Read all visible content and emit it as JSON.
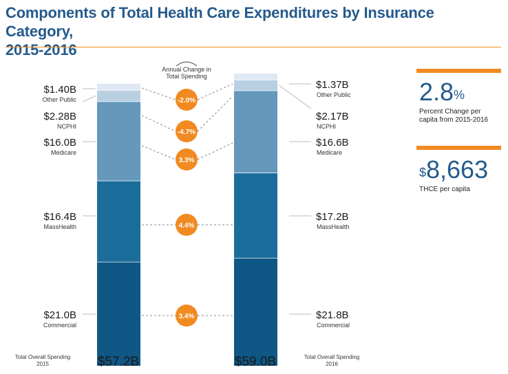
{
  "header": {
    "title_line1": "Components of Total Health Care Expenditures by Insurance Category,",
    "title_line2": "2015-2016"
  },
  "stats": [
    {
      "value": "2.8",
      "suffix": "%",
      "prefix": "",
      "label_line1": "Percent Change per",
      "label_line2": "capita from 2015-2016"
    },
    {
      "value": "8,663",
      "suffix": "",
      "prefix": "$",
      "label_line1": "THCE per capita",
      "label_line2": ""
    }
  ],
  "chart_data": {
    "type": "bar",
    "stacked": true,
    "categories": [
      "2015",
      "2016"
    ],
    "series": [
      {
        "name": "Commercial",
        "values": [
          21.0,
          21.8
        ],
        "labels": [
          "$21.0B",
          "$21.8B"
        ],
        "change": "3.4%",
        "color": "#0f5784"
      },
      {
        "name": "MassHealth",
        "values": [
          16.4,
          17.2
        ],
        "labels": [
          "$16.4B",
          "$17.2B"
        ],
        "change": "4.4%",
        "color": "#1b6d9c"
      },
      {
        "name": "Medicare",
        "values": [
          16.0,
          16.6
        ],
        "labels": [
          "$16.0B",
          "$16.6B"
        ],
        "change": "3.3%",
        "color": "#6498bd"
      },
      {
        "name": "NCPHI",
        "values": [
          2.28,
          2.17
        ],
        "labels": [
          "$2.28B",
          "$2.17B"
        ],
        "change": "-4.7%",
        "color": "#b9cfe2"
      },
      {
        "name": "Other Public",
        "values": [
          1.4,
          1.37
        ],
        "labels": [
          "$1.40B",
          "$1.37B"
        ],
        "change": "-2.0%",
        "color": "#dfe9f3"
      }
    ],
    "totals": [
      {
        "caption_line1": "Total Overall Spending",
        "caption_line2": "2015",
        "value": "$57.2B"
      },
      {
        "caption_line1": "Total Overall Spending",
        "caption_line2": "2016",
        "value": "$59.0B"
      }
    ],
    "change_header_line1": "Annual Change in",
    "change_header_line2": "Total Spending",
    "change_color": "#f18a21"
  }
}
